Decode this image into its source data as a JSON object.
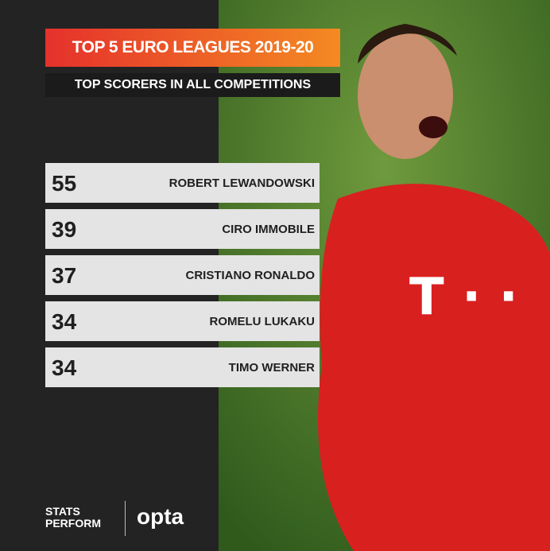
{
  "header": {
    "title": "TOP 5 EURO LEAGUES 2019-20",
    "subtitle": "TOP SCORERS IN ALL COMPETITIONS"
  },
  "table": {
    "rows": [
      {
        "goals": 55,
        "name": "ROBERT LEWANDOWSKI"
      },
      {
        "goals": 39,
        "name": "CIRO IMMOBILE"
      },
      {
        "goals": 37,
        "name": "CRISTIANO RONALDO"
      },
      {
        "goals": 34,
        "name": "ROMELU LUKAKU"
      },
      {
        "goals": 34,
        "name": "TIMO WERNER"
      }
    ]
  },
  "footer": {
    "brand_top": "STATS",
    "brand_bottom": "PERFORM",
    "partner": "opta"
  }
}
